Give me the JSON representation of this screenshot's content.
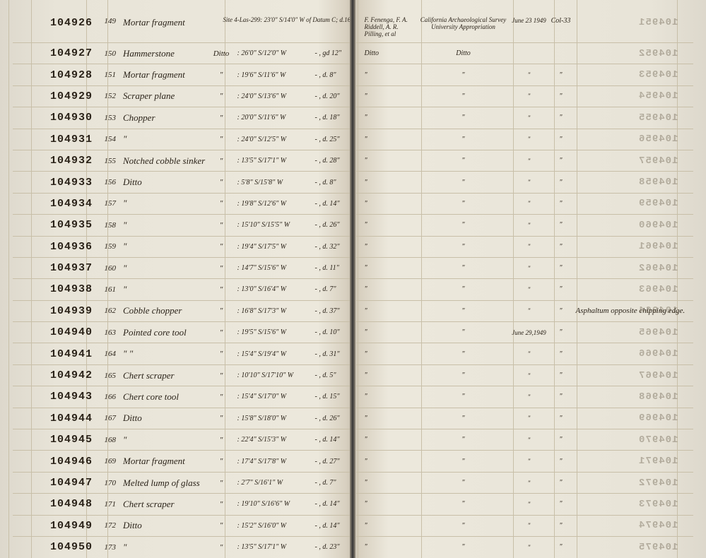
{
  "header": {
    "site_desc": "Site 4-Las-299: 23'0\" S/14'0\" W of Datum C; d.16\"",
    "collector": "F. Fenenga, F. A. Riddell, A. R. Pilling, et al",
    "method": "California Archaeological Survey University Appropriation",
    "date": "June 23 1949",
    "acc": "Col-33"
  },
  "rows": [
    {
      "cat": "104926",
      "n": "149",
      "desc": "Mortar fragment",
      "site": "",
      "loc": "",
      "depth": "",
      "rnote": "",
      "rev": "104951"
    },
    {
      "cat": "104927",
      "n": "150",
      "desc": "Hammerstone",
      "site": "Ditto",
      "loc": ": 26'0\" S/12'0\" W",
      "depth": "- , gd 12\"",
      "coll": "Ditto",
      "meth": "Ditto",
      "rnote": "",
      "rev": "104952"
    },
    {
      "cat": "104928",
      "n": "151",
      "desc": "Mortar fragment",
      "site": "\"",
      "loc": ": 19'6\" S/11'6\" W",
      "depth": "- , d. 8\"",
      "coll": "\"",
      "meth": "\"",
      "rdate": "\"",
      "racc": "\"",
      "rnote": "",
      "rev": "104953"
    },
    {
      "cat": "104929",
      "n": "152",
      "desc": "Scraper plane",
      "site": "\"",
      "loc": ": 24'0\" S/13'6\" W",
      "depth": "- , d. 20\"",
      "coll": "\"",
      "meth": "\"",
      "rdate": "\"",
      "racc": "\"",
      "rnote": "",
      "rev": "104954"
    },
    {
      "cat": "104930",
      "n": "153",
      "desc": "Chopper",
      "site": "\"",
      "loc": ": 20'0\" S/11'6\" W",
      "depth": "- , d. 18\"",
      "coll": "\"",
      "meth": "\"",
      "rdate": "\"",
      "racc": "\"",
      "rnote": "",
      "rev": "104955"
    },
    {
      "cat": "104931",
      "n": "154",
      "desc": "\"",
      "site": "\"",
      "loc": ": 24'0\" S/12'5\" W",
      "depth": "- , d. 25\"",
      "coll": "\"",
      "meth": "\"",
      "rdate": "\"",
      "racc": "\"",
      "rnote": "",
      "rev": "104956"
    },
    {
      "cat": "104932",
      "n": "155",
      "desc": "Notched cobble sinker",
      "site": "\"",
      "loc": ": 13'5\" S/17'1\" W",
      "depth": "- , d. 28\"",
      "coll": "\"",
      "meth": "\"",
      "rdate": "\"",
      "racc": "\"",
      "rnote": "",
      "rev": "104957"
    },
    {
      "cat": "104933",
      "n": "156",
      "desc": "Ditto",
      "site": "\"",
      "loc": ": 5'8\" S/15'8\" W",
      "depth": "- , d. 8\"",
      "coll": "\"",
      "meth": "\"",
      "rdate": "\"",
      "racc": "\"",
      "rnote": "",
      "rev": "104958"
    },
    {
      "cat": "104934",
      "n": "157",
      "desc": "\"",
      "site": "\"",
      "loc": ": 19'8\" S/12'6\" W",
      "depth": "- , d. 14\"",
      "coll": "\"",
      "meth": "\"",
      "rdate": "\"",
      "racc": "\"",
      "rnote": "",
      "rev": "104959"
    },
    {
      "cat": "104935",
      "n": "158",
      "desc": "\"",
      "site": "\"",
      "loc": ": 15'10\" S/15'5\" W",
      "depth": "- , d. 26\"",
      "coll": "\"",
      "meth": "\"",
      "rdate": "\"",
      "racc": "\"",
      "rnote": "",
      "rev": "104960"
    },
    {
      "cat": "104936",
      "n": "159",
      "desc": "\"",
      "site": "\"",
      "loc": ": 19'4\" S/17'5\" W",
      "depth": "- , d. 32\"",
      "coll": "\"",
      "meth": "\"",
      "rdate": "\"",
      "racc": "\"",
      "rnote": "",
      "rev": "104961"
    },
    {
      "cat": "104937",
      "n": "160",
      "desc": "\"",
      "site": "\"",
      "loc": ": 14'7\" S/15'6\" W",
      "depth": "- , d. 11\"",
      "coll": "\"",
      "meth": "\"",
      "rdate": "\"",
      "racc": "\"",
      "rnote": "",
      "rev": "104962"
    },
    {
      "cat": "104938",
      "n": "161",
      "desc": "\"",
      "site": "\"",
      "loc": ": 13'0\" S/16'4\" W",
      "depth": "- , d. 7\"",
      "coll": "\"",
      "meth": "\"",
      "rdate": "\"",
      "racc": "\"",
      "rnote": "",
      "rev": "104963"
    },
    {
      "cat": "104939",
      "n": "162",
      "desc": "Cobble chopper",
      "site": "\"",
      "loc": ": 16'8\" S/17'3\" W",
      "depth": "- , d. 37\"",
      "coll": "\"",
      "meth": "\"",
      "rdate": "\"",
      "racc": "\"",
      "rnote": "Asphaltum opposite chipping edge.",
      "rev": "104964"
    },
    {
      "cat": "104940",
      "n": "163",
      "desc": "Pointed core tool",
      "site": "\"",
      "loc": ": 19'5\" S/15'6\" W",
      "depth": "- , d. 10\"",
      "coll": "\"",
      "meth": "\"",
      "rdate": "June 29,1949",
      "racc": "\"",
      "rnote": "",
      "rev": "104965"
    },
    {
      "cat": "104941",
      "n": "164",
      "desc": "\"   \"",
      "site": "\"",
      "loc": ": 15'4\" S/19'4\" W",
      "depth": "- , d. 31\"",
      "coll": "\"",
      "meth": "\"",
      "rdate": "\"",
      "racc": "\"",
      "rnote": "",
      "rev": "104966"
    },
    {
      "cat": "104942",
      "n": "165",
      "desc": "Chert scraper",
      "site": "\"",
      "loc": ": 10'10\" S/17'10\" W",
      "depth": "- , d. 5\"",
      "coll": "\"",
      "meth": "\"",
      "rdate": "\"",
      "racc": "\"",
      "rnote": "",
      "rev": "104967"
    },
    {
      "cat": "104943",
      "n": "166",
      "desc": "Chert core tool",
      "site": "\"",
      "loc": ": 15'4\" S/17'0\" W",
      "depth": "- , d. 15\"",
      "coll": "\"",
      "meth": "\"",
      "rdate": "\"",
      "racc": "\"",
      "rnote": "",
      "rev": "104968"
    },
    {
      "cat": "104944",
      "n": "167",
      "desc": "Ditto",
      "site": "\"",
      "loc": ": 15'8\" S/18'0\" W",
      "depth": "- , d. 26\"",
      "coll": "\"",
      "meth": "\"",
      "rdate": "\"",
      "racc": "\"",
      "rnote": "",
      "rev": "104969"
    },
    {
      "cat": "104945",
      "n": "168",
      "desc": "\"",
      "site": "\"",
      "loc": ": 22'4\" S/15'3\" W",
      "depth": "- , d. 14\"",
      "coll": "\"",
      "meth": "\"",
      "rdate": "\"",
      "racc": "\"",
      "rnote": "",
      "rev": "104970"
    },
    {
      "cat": "104946",
      "n": "169",
      "desc": "Mortar fragment",
      "site": "\"",
      "loc": ": 17'4\" S/17'8\" W",
      "depth": "- , d. 27\"",
      "coll": "\"",
      "meth": "\"",
      "rdate": "\"",
      "racc": "\"",
      "rnote": "",
      "rev": "104971"
    },
    {
      "cat": "104947",
      "n": "170",
      "desc": "Melted lump of glass",
      "site": "\"",
      "loc": ": 2'7\" S/16'1\" W",
      "depth": "- , d. 7\"",
      "coll": "\"",
      "meth": "\"",
      "rdate": "\"",
      "racc": "\"",
      "rnote": "",
      "rev": "104972"
    },
    {
      "cat": "104948",
      "n": "171",
      "desc": "Chert scraper",
      "site": "\"",
      "loc": ": 19'10\" S/16'6\" W",
      "depth": "- , d. 14\"",
      "coll": "\"",
      "meth": "\"",
      "rdate": "\"",
      "racc": "\"",
      "rnote": "",
      "rev": "104973"
    },
    {
      "cat": "104949",
      "n": "172",
      "desc": "Ditto",
      "site": "\"",
      "loc": ": 15'2\" S/16'0\" W",
      "depth": "- , d. 14\"",
      "coll": "\"",
      "meth": "\"",
      "rdate": "\"",
      "racc": "\"",
      "rnote": "",
      "rev": "104974"
    },
    {
      "cat": "104950",
      "n": "173",
      "desc": "\"",
      "site": "\"",
      "loc": ": 13'5\" S/17'1\" W",
      "depth": "- , d. 23\"",
      "coll": "\"",
      "meth": "\"",
      "rdate": "\"",
      "racc": "\"",
      "rnote": "",
      "rev": "104975"
    }
  ]
}
